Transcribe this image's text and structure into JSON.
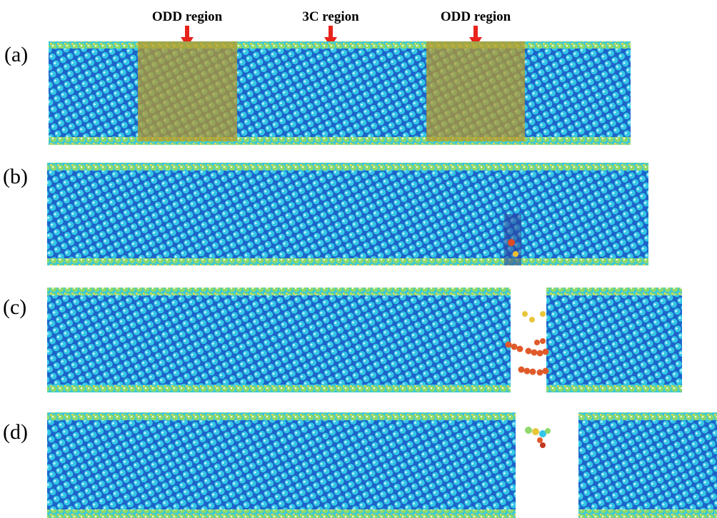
{
  "annotations": [
    {
      "text": "ODD region"
    },
    {
      "text": "3C region"
    },
    {
      "text": "ODD region"
    }
  ],
  "panels": [
    {
      "label": "(a)"
    },
    {
      "label": "(b)"
    },
    {
      "label": "(c)"
    },
    {
      "label": "(d)"
    }
  ]
}
